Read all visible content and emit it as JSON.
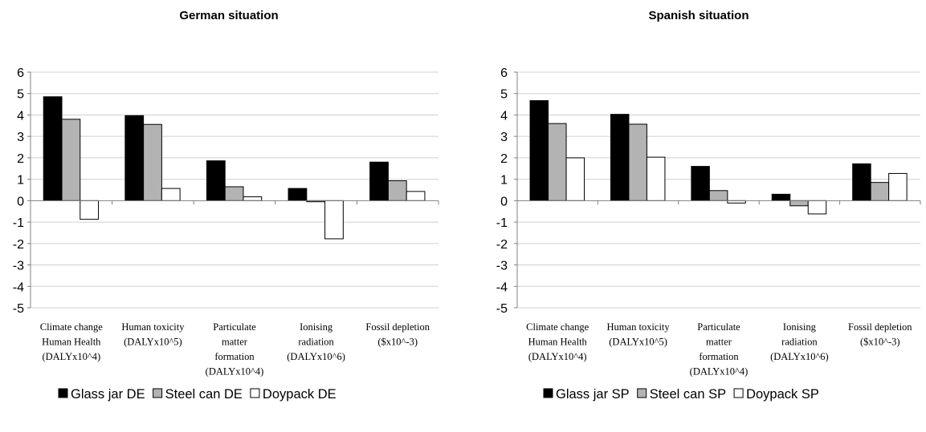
{
  "chart_data": [
    {
      "type": "bar",
      "title": "German situation",
      "categories": [
        [
          "Climate change",
          "Human Health",
          "(DALYx10^4)"
        ],
        [
          "Human toxicity",
          "(DALYx10^5)"
        ],
        [
          "Particulate",
          "matter",
          "formation",
          "(DALYx10^4)"
        ],
        [
          "Ionising",
          "radiation",
          "(DALYx10^6)"
        ],
        [
          "Fossil depletion",
          "($x10^-3)"
        ]
      ],
      "ylim": [
        -5,
        6
      ],
      "yticks": [
        "-5",
        "-4",
        "-3",
        "-2",
        "-1",
        "0",
        "1",
        "2",
        "3",
        "4",
        "5",
        "6"
      ],
      "grid": true,
      "legend_position": "bottom",
      "series": [
        {
          "name": "Glass jar DE",
          "color": "#000000",
          "values": [
            4.85,
            3.97,
            1.86,
            0.57,
            1.8
          ]
        },
        {
          "name": "Steel can DE",
          "color": "#b3b3b3",
          "values": [
            3.8,
            3.56,
            0.65,
            -0.05,
            0.93
          ]
        },
        {
          "name": "Doypack DE",
          "color": "#ffffff",
          "values": [
            -0.87,
            0.57,
            0.18,
            -1.78,
            0.43
          ]
        }
      ]
    },
    {
      "type": "bar",
      "title": "Spanish situation",
      "categories": [
        [
          "Climate change",
          "Human Health",
          "(DALYx10^4)"
        ],
        [
          "Human toxicity",
          "(DALYx10^5)"
        ],
        [
          "Particulate",
          "matter",
          "formation",
          "(DALYx10^4)"
        ],
        [
          "Ionising",
          "radiation",
          "(DALYx10^6)"
        ],
        [
          "Fossil depletion",
          "($x10^-3)"
        ]
      ],
      "ylim": [
        -5,
        6
      ],
      "yticks": [
        "-5",
        "-4",
        "-3",
        "-2",
        "-1",
        "0",
        "1",
        "2",
        "3",
        "4",
        "5",
        "6"
      ],
      "grid": true,
      "legend_position": "bottom",
      "series": [
        {
          "name": "Glass jar SP",
          "color": "#000000",
          "values": [
            4.67,
            4.03,
            1.6,
            0.3,
            1.72
          ]
        },
        {
          "name": "Steel can SP",
          "color": "#b3b3b3",
          "values": [
            3.6,
            3.57,
            0.47,
            -0.24,
            0.85
          ]
        },
        {
          "name": "Doypack SP",
          "color": "#ffffff",
          "values": [
            2.0,
            2.03,
            -0.11,
            -0.62,
            1.27
          ]
        }
      ]
    }
  ]
}
